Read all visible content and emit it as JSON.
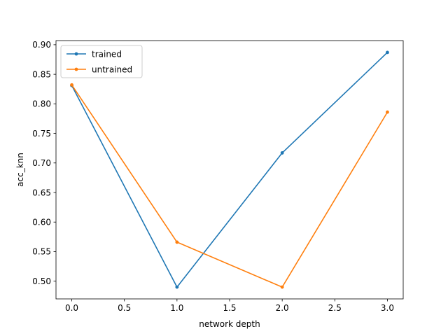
{
  "chart_data": {
    "type": "line",
    "xlabel": "network depth",
    "ylabel": "acc_knn",
    "xlim": [
      -0.15,
      3.15
    ],
    "ylim": [
      0.47,
      0.907
    ],
    "x_ticks": [
      0.0,
      0.5,
      1.0,
      1.5,
      2.0,
      2.5,
      3.0
    ],
    "x_tick_labels": [
      "0.0",
      "0.5",
      "1.0",
      "1.5",
      "2.0",
      "2.5",
      "3.0"
    ],
    "y_ticks": [
      0.5,
      0.55,
      0.6,
      0.65,
      0.7,
      0.75,
      0.8,
      0.85,
      0.9
    ],
    "y_tick_labels": [
      "0.50",
      "0.55",
      "0.60",
      "0.65",
      "0.70",
      "0.75",
      "0.80",
      "0.85",
      "0.90"
    ],
    "grid": false,
    "legend_position": "top-left",
    "x": [
      0,
      1,
      2,
      3
    ],
    "series": [
      {
        "name": "trained",
        "color": "#1f77b4",
        "values": [
          0.831,
          0.49,
          0.717,
          0.887
        ]
      },
      {
        "name": "untrained",
        "color": "#ff7f0e",
        "values": [
          0.832,
          0.566,
          0.49,
          0.786
        ]
      }
    ]
  }
}
